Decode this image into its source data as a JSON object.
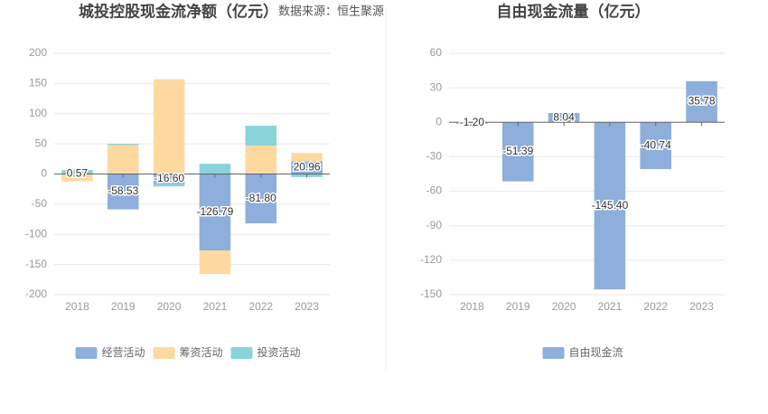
{
  "source": "数据来源：恒生聚源",
  "chart_data": [
    {
      "type": "stacked_bar",
      "title": "城投控股现金流净额（亿元）",
      "categories": [
        "2018",
        "2019",
        "2020",
        "2021",
        "2022",
        "2023"
      ],
      "series": [
        {
          "name": "经营活动",
          "color": "#8eaedc",
          "values": [
            0.57,
            -58.53,
            -16.6,
            -126.79,
            -81.8,
            20.96
          ],
          "value_labels": [
            "0.57",
            "-58.53",
            "-16.60",
            "-126.79",
            "-81.80",
            "20.96"
          ]
        },
        {
          "name": "筹资活动",
          "color": "#fdd9a0",
          "values": [
            -12,
            48,
            157,
            -39,
            47,
            14
          ]
        },
        {
          "name": "投资活动",
          "color": "#88d4d8",
          "values": [
            6,
            2,
            -4,
            17,
            33,
            -5
          ]
        }
      ],
      "ylim": [
        -200,
        200
      ],
      "yticks": [
        200,
        150,
        100,
        50,
        0,
        -50,
        -100,
        -150,
        -200
      ],
      "grid": true,
      "legend": "bottom"
    },
    {
      "type": "bar",
      "title": "自由现金流量（亿元）",
      "categories": [
        "2018",
        "2019",
        "2020",
        "2021",
        "2022",
        "2023"
      ],
      "series": [
        {
          "name": "自由现金流",
          "color": "#8eaedc",
          "values": [
            -1.2,
            -51.39,
            8.04,
            -145.4,
            -40.74,
            35.78
          ],
          "value_labels": [
            "-1.20",
            "-51.39",
            "8.04",
            "-145.40",
            "-40.74",
            "35.78"
          ]
        }
      ],
      "ylim": [
        -150,
        60
      ],
      "yticks": [
        60,
        30,
        0,
        -30,
        -60,
        -90,
        -120,
        -150
      ],
      "grid": true,
      "legend": "bottom"
    }
  ]
}
